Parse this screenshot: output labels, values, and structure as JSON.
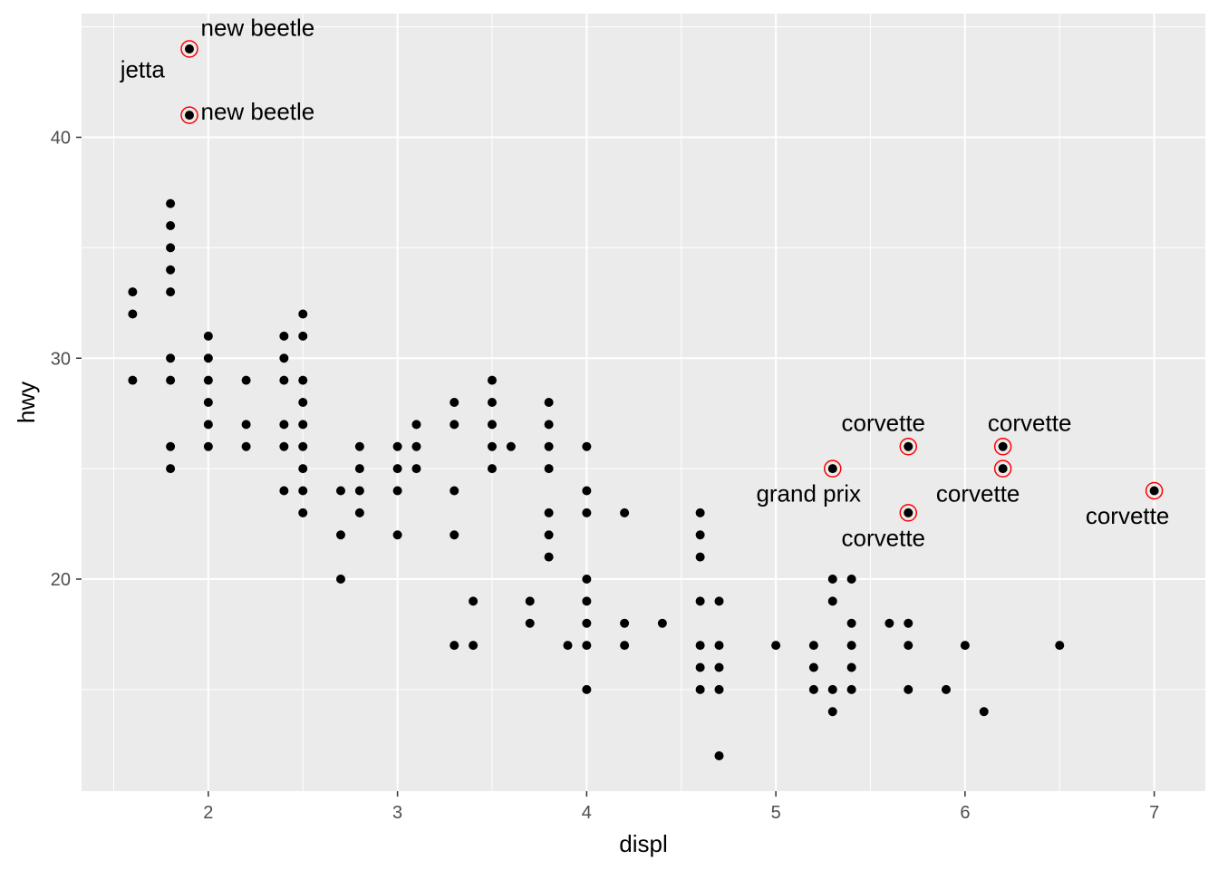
{
  "chart_data": {
    "type": "scatter",
    "xlabel": "displ",
    "ylabel": "hwy",
    "xlim": [
      1.33,
      7.27
    ],
    "ylim": [
      10.4,
      45.6
    ],
    "x_ticks": [
      2,
      3,
      4,
      5,
      6,
      7
    ],
    "x_tick_labels": [
      "2",
      "3",
      "4",
      "5",
      "6",
      "7"
    ],
    "y_ticks": [
      20,
      30,
      40
    ],
    "y_tick_labels": [
      "20",
      "30",
      "40"
    ],
    "grid": true,
    "panel_color": "#ebebeb",
    "point_color": "#000000",
    "highlight_color": "#ff0000",
    "points": [
      [
        1.6,
        33
      ],
      [
        1.6,
        32
      ],
      [
        1.6,
        29
      ],
      [
        1.8,
        37
      ],
      [
        1.8,
        36
      ],
      [
        1.8,
        35
      ],
      [
        1.8,
        34
      ],
      [
        1.8,
        33
      ],
      [
        1.8,
        30
      ],
      [
        1.8,
        29
      ],
      [
        1.8,
        26
      ],
      [
        1.8,
        25
      ],
      [
        1.9,
        44
      ],
      [
        1.9,
        41
      ],
      [
        2.0,
        31
      ],
      [
        2.0,
        30
      ],
      [
        2.0,
        29
      ],
      [
        2.0,
        28
      ],
      [
        2.0,
        27
      ],
      [
        2.0,
        26
      ],
      [
        2.2,
        29
      ],
      [
        2.2,
        27
      ],
      [
        2.2,
        26
      ],
      [
        2.4,
        31
      ],
      [
        2.4,
        30
      ],
      [
        2.4,
        29
      ],
      [
        2.4,
        27
      ],
      [
        2.4,
        26
      ],
      [
        2.4,
        24
      ],
      [
        2.5,
        32
      ],
      [
        2.5,
        31
      ],
      [
        2.5,
        29
      ],
      [
        2.5,
        28
      ],
      [
        2.5,
        27
      ],
      [
        2.5,
        26
      ],
      [
        2.5,
        25
      ],
      [
        2.5,
        24
      ],
      [
        2.5,
        23
      ],
      [
        2.7,
        24
      ],
      [
        2.7,
        22
      ],
      [
        2.7,
        20
      ],
      [
        2.8,
        26
      ],
      [
        2.8,
        25
      ],
      [
        2.8,
        24
      ],
      [
        2.8,
        23
      ],
      [
        3.0,
        26
      ],
      [
        3.0,
        25
      ],
      [
        3.0,
        24
      ],
      [
        3.0,
        22
      ],
      [
        3.1,
        27
      ],
      [
        3.1,
        26
      ],
      [
        3.1,
        25
      ],
      [
        3.3,
        28
      ],
      [
        3.3,
        27
      ],
      [
        3.3,
        24
      ],
      [
        3.3,
        22
      ],
      [
        3.3,
        17
      ],
      [
        3.4,
        19
      ],
      [
        3.4,
        17
      ],
      [
        3.5,
        29
      ],
      [
        3.5,
        28
      ],
      [
        3.5,
        27
      ],
      [
        3.5,
        26
      ],
      [
        3.5,
        25
      ],
      [
        3.6,
        26
      ],
      [
        3.7,
        19
      ],
      [
        3.7,
        18
      ],
      [
        3.8,
        28
      ],
      [
        3.8,
        27
      ],
      [
        3.8,
        26
      ],
      [
        3.8,
        25
      ],
      [
        3.8,
        23
      ],
      [
        3.8,
        22
      ],
      [
        3.8,
        21
      ],
      [
        3.9,
        17
      ],
      [
        4.0,
        26
      ],
      [
        4.0,
        24
      ],
      [
        4.0,
        23
      ],
      [
        4.0,
        20
      ],
      [
        4.0,
        19
      ],
      [
        4.0,
        18
      ],
      [
        4.0,
        17
      ],
      [
        4.0,
        15
      ],
      [
        4.2,
        23
      ],
      [
        4.2,
        18
      ],
      [
        4.2,
        17
      ],
      [
        4.4,
        18
      ],
      [
        4.6,
        23
      ],
      [
        4.6,
        22
      ],
      [
        4.6,
        21
      ],
      [
        4.6,
        19
      ],
      [
        4.6,
        17
      ],
      [
        4.6,
        16
      ],
      [
        4.6,
        15
      ],
      [
        4.7,
        19
      ],
      [
        4.7,
        17
      ],
      [
        4.7,
        16
      ],
      [
        4.7,
        15
      ],
      [
        4.7,
        12
      ],
      [
        5.0,
        17
      ],
      [
        5.2,
        17
      ],
      [
        5.2,
        16
      ],
      [
        5.2,
        15
      ],
      [
        5.3,
        25
      ],
      [
        5.3,
        20
      ],
      [
        5.3,
        19
      ],
      [
        5.3,
        15
      ],
      [
        5.3,
        14
      ],
      [
        5.4,
        20
      ],
      [
        5.4,
        18
      ],
      [
        5.4,
        17
      ],
      [
        5.4,
        16
      ],
      [
        5.4,
        15
      ],
      [
        5.6,
        18
      ],
      [
        5.7,
        26
      ],
      [
        5.7,
        23
      ],
      [
        5.7,
        18
      ],
      [
        5.7,
        17
      ],
      [
        5.7,
        15
      ],
      [
        5.9,
        15
      ],
      [
        6.0,
        17
      ],
      [
        6.1,
        14
      ],
      [
        6.2,
        26
      ],
      [
        6.2,
        25
      ],
      [
        6.5,
        17
      ],
      [
        7.0,
        24
      ]
    ],
    "highlighted": [
      [
        1.9,
        44
      ],
      [
        1.9,
        41
      ],
      [
        5.3,
        25
      ],
      [
        5.7,
        26
      ],
      [
        5.7,
        23
      ],
      [
        6.2,
        26
      ],
      [
        6.2,
        25
      ],
      [
        7.0,
        24
      ]
    ],
    "annotations": [
      {
        "text": "new beetle",
        "x": 1.9,
        "y": 44,
        "anchor": "start",
        "dx": 0.06,
        "dy": 0.6
      },
      {
        "text": "jetta",
        "x": 1.9,
        "y": 44,
        "anchor": "end",
        "dx": -0.13,
        "dy": -1.3
      },
      {
        "text": "new beetle",
        "x": 1.9,
        "y": 41,
        "anchor": "start",
        "dx": 0.06,
        "dy": -0.2
      },
      {
        "text": "corvette",
        "x": 5.7,
        "y": 26,
        "anchor": "end",
        "dx": 0.09,
        "dy": 0.7
      },
      {
        "text": "grand prix",
        "x": 5.3,
        "y": 25,
        "anchor": "end",
        "dx": 0.15,
        "dy": -1.5
      },
      {
        "text": "corvette",
        "x": 5.7,
        "y": 23,
        "anchor": "end",
        "dx": 0.09,
        "dy": -1.5
      },
      {
        "text": "corvette",
        "x": 6.2,
        "y": 26,
        "anchor": "start",
        "dx": -0.08,
        "dy": 0.7
      },
      {
        "text": "corvette",
        "x": 6.2,
        "y": 25,
        "anchor": "end",
        "dx": 0.09,
        "dy": -1.5
      },
      {
        "text": "corvette",
        "x": 7.0,
        "y": 24,
        "anchor": "end",
        "dx": 0.08,
        "dy": -1.5
      }
    ]
  }
}
